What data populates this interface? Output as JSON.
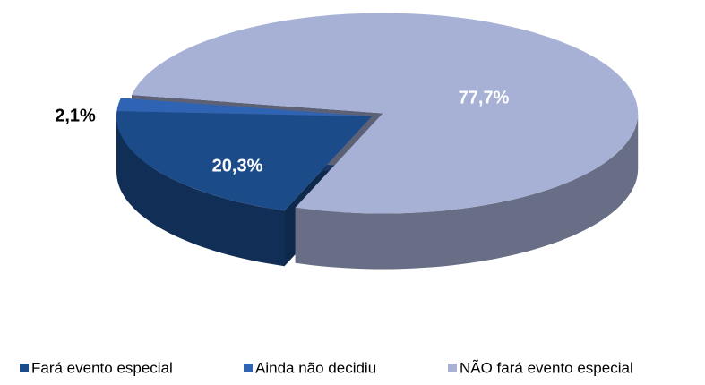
{
  "chart_data": {
    "type": "pie3d",
    "categories": [
      "Fará evento especial",
      "Ainda não decidiu",
      "NÃO fará evento especial"
    ],
    "values": [
      20.3,
      2.1,
      77.7
    ],
    "value_labels": [
      "20,3%",
      "2,1%",
      "77,7%"
    ],
    "colors": [
      "#1c4b8a",
      "#2f63b3",
      "#a7b1d6"
    ],
    "legend": "bottom"
  }
}
